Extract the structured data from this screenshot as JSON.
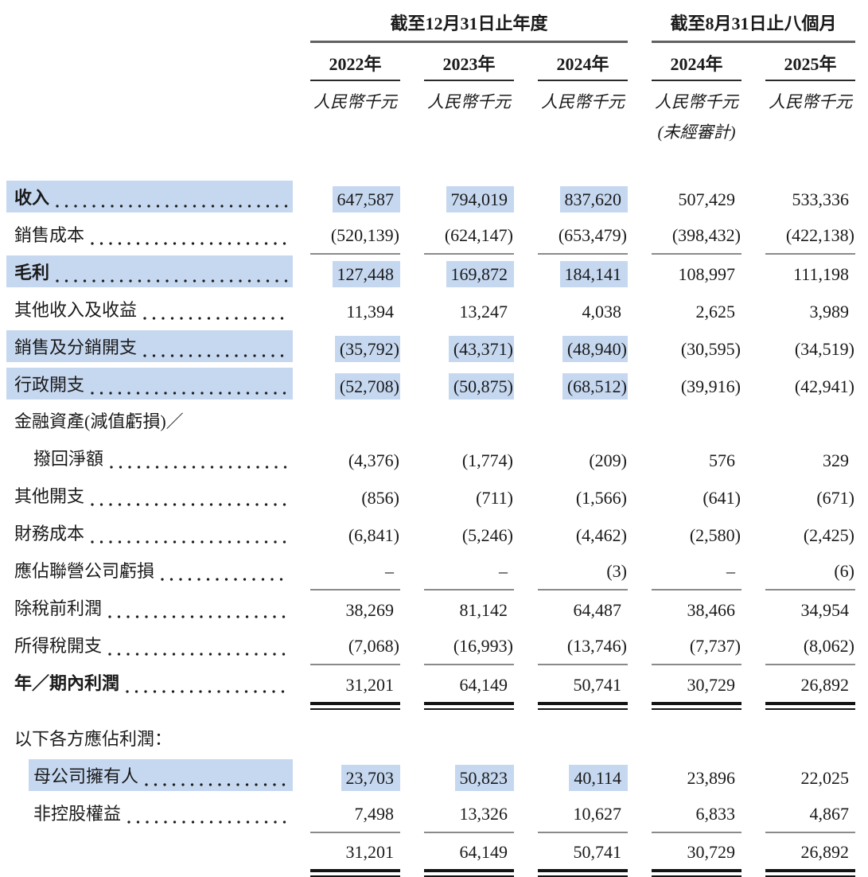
{
  "colors": {
    "highlight": "#c6d8f0",
    "rule_single": "#8a8a8a",
    "rule_dark": "#2a2a2a",
    "rule_group": "#616161",
    "rule_double": "#141414",
    "text": "#1a1a1a"
  },
  "table": {
    "col_groups": [
      {
        "label": "截至12月31日止年度",
        "span": 3
      },
      {
        "label": "截至8月31日止八個月",
        "span": 2
      }
    ],
    "columns": [
      {
        "year": "2022年",
        "unit": "人民幣千元",
        "note": ""
      },
      {
        "year": "2023年",
        "unit": "人民幣千元",
        "note": ""
      },
      {
        "year": "2024年",
        "unit": "人民幣千元",
        "note": ""
      },
      {
        "year": "2024年",
        "unit": "人民幣千元",
        "note": "(未經審計)"
      },
      {
        "year": "2025年",
        "unit": "人民幣千元",
        "note": ""
      }
    ],
    "rows": [
      {
        "label": "收入",
        "bold": true,
        "hl": true,
        "leader": true,
        "values": [
          "647,587",
          "794,019",
          "837,620",
          "507,429",
          "533,336"
        ],
        "hl_values": [
          0,
          1,
          2
        ],
        "rule": "none"
      },
      {
        "label": "銷售成本",
        "leader": true,
        "values": [
          "(520,139)",
          "(624,147)",
          "(653,479)",
          "(398,432)",
          "(422,138)"
        ],
        "rule": "single"
      },
      {
        "label": "毛利",
        "bold": true,
        "hl": true,
        "leader": true,
        "values": [
          "127,448",
          "169,872",
          "184,141",
          "108,997",
          "111,198"
        ],
        "hl_values": [
          0,
          1,
          2
        ],
        "rule": "none"
      },
      {
        "label": "其他收入及收益",
        "leader": true,
        "values": [
          "11,394",
          "13,247",
          "4,038",
          "2,625",
          "3,989"
        ],
        "rule": "none"
      },
      {
        "label": "銷售及分銷開支",
        "hl": true,
        "leader": true,
        "values": [
          "(35,792)",
          "(43,371)",
          "(48,940)",
          "(30,595)",
          "(34,519)"
        ],
        "hl_values": [
          0,
          1,
          2
        ],
        "rule": "none"
      },
      {
        "label": "行政開支",
        "hl": true,
        "leader": true,
        "values": [
          "(52,708)",
          "(50,875)",
          "(68,512)",
          "(39,916)",
          "(42,941)"
        ],
        "hl_values": [
          0,
          1,
          2
        ],
        "rule": "none"
      },
      {
        "label": "金融資產(減值虧損)／",
        "kind": "wrap",
        "leader": false,
        "values": null,
        "rule": "none"
      },
      {
        "label": "撥回淨額",
        "indent": true,
        "leader": true,
        "values": [
          "(4,376)",
          "(1,774)",
          "(209)",
          "576",
          "329"
        ],
        "rule": "none"
      },
      {
        "label": "其他開支",
        "leader": true,
        "values": [
          "(856)",
          "(711)",
          "(1,566)",
          "(641)",
          "(671)"
        ],
        "rule": "none"
      },
      {
        "label": "財務成本",
        "leader": true,
        "values": [
          "(6,841)",
          "(5,246)",
          "(4,462)",
          "(2,580)",
          "(2,425)"
        ],
        "rule": "none"
      },
      {
        "label": "應佔聯營公司虧損",
        "leader": true,
        "values": [
          "–",
          "–",
          "(3)",
          "–",
          "(6)"
        ],
        "rule": "single"
      },
      {
        "label": "除稅前利潤",
        "leader": true,
        "values": [
          "38,269",
          "81,142",
          "64,487",
          "38,466",
          "34,954"
        ],
        "rule": "none"
      },
      {
        "label": "所得稅開支",
        "leader": true,
        "values": [
          "(7,068)",
          "(16,993)",
          "(13,746)",
          "(7,737)",
          "(8,062)"
        ],
        "rule": "single"
      },
      {
        "label": "年／期內利潤",
        "bold": true,
        "leader": true,
        "values": [
          "31,201",
          "64,149",
          "50,741",
          "30,729",
          "26,892"
        ],
        "rule": "double"
      },
      {
        "label": "以下各方應佔利潤：",
        "kind": "section",
        "leader": false,
        "values": null,
        "rule": "none"
      },
      {
        "label": "母公司擁有人",
        "indent": true,
        "hl": true,
        "leader": true,
        "values": [
          "23,703",
          "50,823",
          "40,114",
          "23,896",
          "22,025"
        ],
        "hl_values": [
          0,
          1,
          2
        ],
        "rule": "none"
      },
      {
        "label": "非控股權益",
        "indent": true,
        "leader": true,
        "values": [
          "7,498",
          "13,326",
          "10,627",
          "6,833",
          "4,867"
        ],
        "rule": "single"
      },
      {
        "label": "",
        "kind": "total",
        "leader": false,
        "values": [
          "31,201",
          "64,149",
          "50,741",
          "30,729",
          "26,892"
        ],
        "rule": "double"
      }
    ]
  }
}
